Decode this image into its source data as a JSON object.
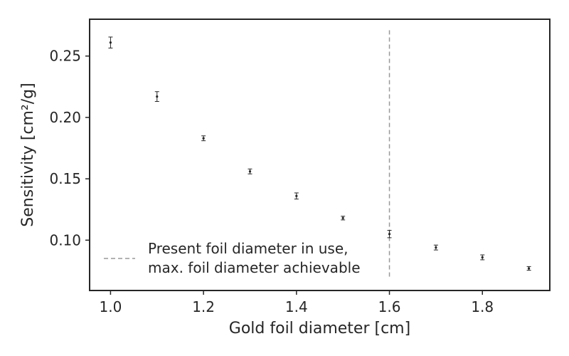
{
  "chart_data": {
    "type": "scatter",
    "title": "",
    "xlabel": "Gold foil diameter [cm]",
    "ylabel": "Sensitivity [cm²/g]",
    "xlim": [
      0.955,
      1.945
    ],
    "ylim": [
      0.059,
      0.28
    ],
    "xticks": [
      1.0,
      1.2,
      1.4,
      1.6,
      1.8
    ],
    "xtick_labels": [
      "1.0",
      "1.2",
      "1.4",
      "1.6",
      "1.8"
    ],
    "yticks": [
      0.1,
      0.15,
      0.2,
      0.25
    ],
    "ytick_labels": [
      "0.10",
      "0.15",
      "0.20",
      "0.25"
    ],
    "grid": false,
    "series": [
      {
        "type": "errorbar",
        "color": "#262626",
        "x": [
          1.0,
          1.1,
          1.2,
          1.3,
          1.4,
          1.5,
          1.6,
          1.7,
          1.8,
          1.9
        ],
        "y": [
          0.261,
          0.217,
          0.183,
          0.156,
          0.136,
          0.118,
          0.105,
          0.094,
          0.086,
          0.077
        ],
        "yerr": [
          0.0045,
          0.004,
          0.002,
          0.002,
          0.0025,
          0.0015,
          0.003,
          0.002,
          0.002,
          0.0015
        ]
      }
    ],
    "vline": {
      "x": 1.6,
      "ymin": 0.07,
      "ymax": 0.271,
      "style": "dashed",
      "color": "#999999"
    },
    "legend": {
      "placement": "lower-left",
      "line1": "Present foil diameter in use,",
      "line2": "max. foil diameter achievable"
    }
  }
}
